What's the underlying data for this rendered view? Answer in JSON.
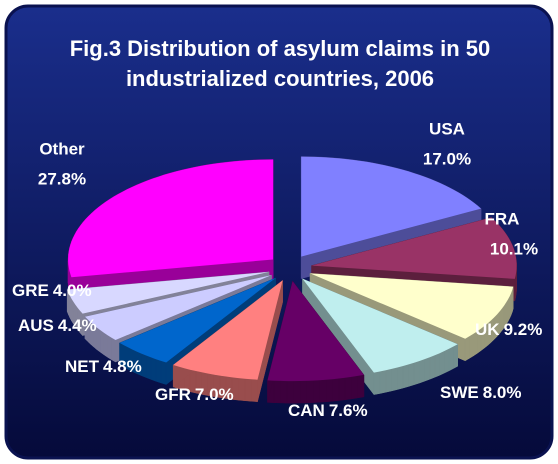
{
  "chart_data": {
    "type": "pie",
    "title": "Fig.3 Distribution of asylum claims in 50 industrialized countries, 2006",
    "categories": [
      "USA",
      "FRA",
      "UK",
      "SWE",
      "CAN",
      "GFR",
      "NET",
      "AUS",
      "GRE",
      "Other"
    ],
    "values": [
      17.0,
      10.1,
      9.2,
      8.0,
      7.6,
      7.0,
      4.8,
      4.4,
      4.0,
      27.8
    ],
    "value_labels": [
      "17.0%",
      "10.1%",
      "9.2%",
      "8.0%",
      "7.6%",
      "7.0%",
      "4.8%",
      "4.4%",
      "4.0%",
      "27.8%"
    ],
    "colors": [
      "#8080ff",
      "#993366",
      "#ffffcc",
      "#bfeeee",
      "#660066",
      "#ff8080",
      "#0066cc",
      "#ccccff",
      "#d8d8ff",
      "#ff00ff"
    ]
  }
}
